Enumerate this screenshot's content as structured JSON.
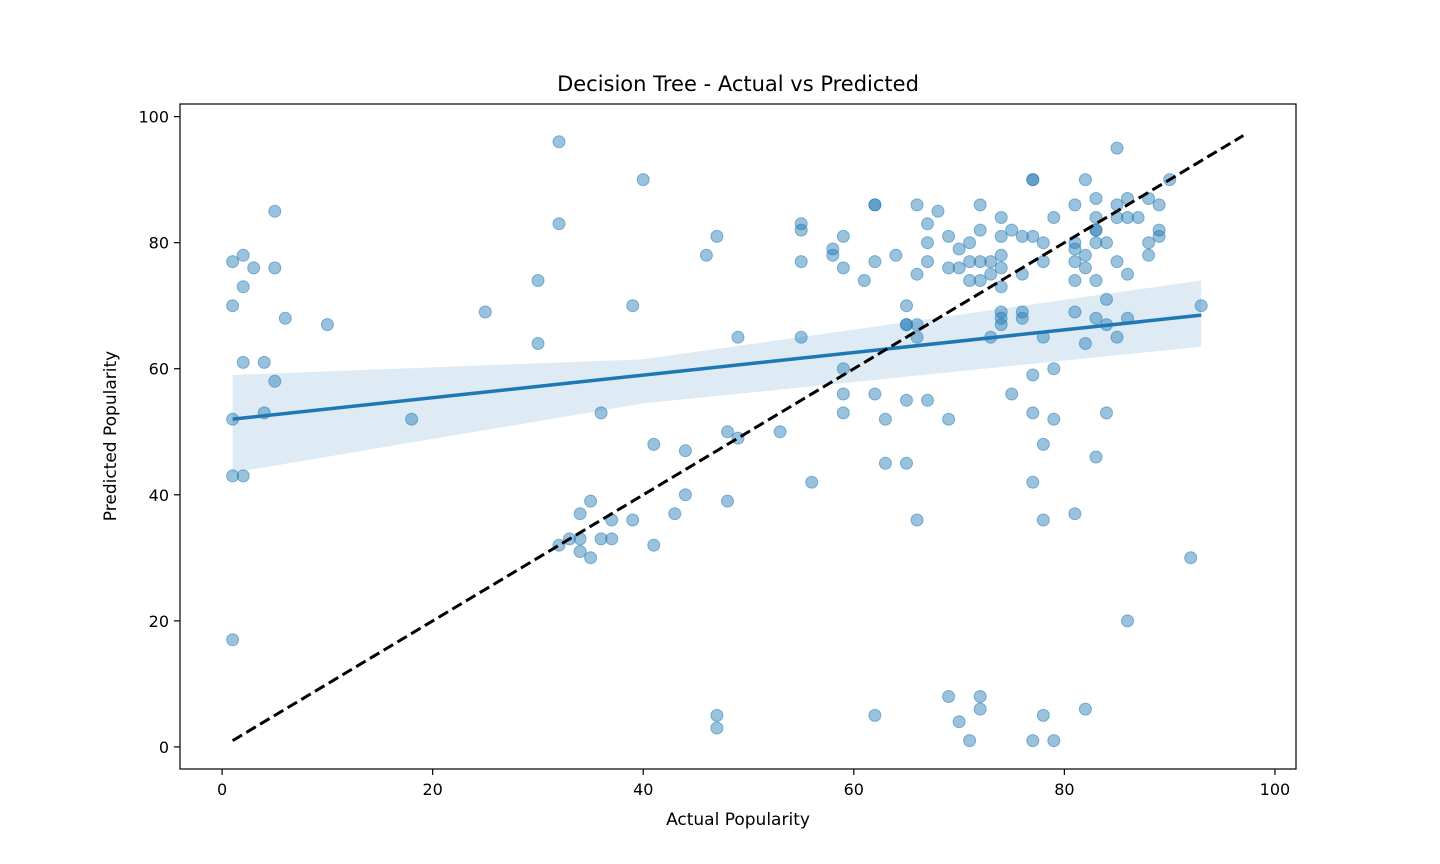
{
  "chart_data": {
    "type": "scatter",
    "title": "Decision Tree - Actual vs Predicted",
    "xlabel": "Actual Popularity",
    "ylabel": "Predicted Popularity",
    "xlim": [
      -4,
      102
    ],
    "ylim": [
      -3.5,
      102
    ],
    "xticks": [
      0,
      20,
      40,
      60,
      80,
      100
    ],
    "yticks": [
      0,
      20,
      40,
      60,
      80,
      100
    ],
    "grid": false,
    "colors": {
      "points": "#1f77b4",
      "regression": "#1f77b4",
      "confidence_band": "#1f77b4",
      "identity_line": "#000000"
    },
    "series": [
      {
        "kind": "scatter",
        "points": [
          [
            1,
            77
          ],
          [
            1,
            70
          ],
          [
            1,
            52
          ],
          [
            1,
            43
          ],
          [
            1,
            17
          ],
          [
            2,
            78
          ],
          [
            2,
            73
          ],
          [
            2,
            61
          ],
          [
            2,
            43
          ],
          [
            3,
            76
          ],
          [
            4,
            61
          ],
          [
            4,
            53
          ],
          [
            5,
            85
          ],
          [
            5,
            76
          ],
          [
            5,
            58
          ],
          [
            6,
            68
          ],
          [
            10,
            67
          ],
          [
            18,
            52
          ],
          [
            25,
            69
          ],
          [
            30,
            74
          ],
          [
            30,
            64
          ],
          [
            32,
            96
          ],
          [
            32,
            83
          ],
          [
            32,
            32
          ],
          [
            33,
            33
          ],
          [
            34,
            37
          ],
          [
            34,
            33
          ],
          [
            34,
            31
          ],
          [
            35,
            39
          ],
          [
            35,
            30
          ],
          [
            36,
            53
          ],
          [
            36,
            33
          ],
          [
            37,
            36
          ],
          [
            37,
            33
          ],
          [
            39,
            70
          ],
          [
            39,
            36
          ],
          [
            40,
            90
          ],
          [
            41,
            48
          ],
          [
            41,
            32
          ],
          [
            43,
            37
          ],
          [
            44,
            47
          ],
          [
            44,
            40
          ],
          [
            46,
            78
          ],
          [
            47,
            81
          ],
          [
            47,
            5
          ],
          [
            47,
            3
          ],
          [
            48,
            50
          ],
          [
            48,
            39
          ],
          [
            49,
            65
          ],
          [
            49,
            49
          ],
          [
            53,
            50
          ],
          [
            55,
            83
          ],
          [
            55,
            82
          ],
          [
            55,
            77
          ],
          [
            55,
            65
          ],
          [
            56,
            42
          ],
          [
            58,
            79
          ],
          [
            58,
            78
          ],
          [
            59,
            81
          ],
          [
            59,
            76
          ],
          [
            59,
            60
          ],
          [
            59,
            56
          ],
          [
            59,
            53
          ],
          [
            61,
            74
          ],
          [
            62,
            86
          ],
          [
            62,
            86
          ],
          [
            62,
            77
          ],
          [
            62,
            56
          ],
          [
            62,
            5
          ],
          [
            63,
            52
          ],
          [
            63,
            45
          ],
          [
            64,
            78
          ],
          [
            65,
            70
          ],
          [
            65,
            67
          ],
          [
            65,
            67
          ],
          [
            65,
            55
          ],
          [
            65,
            45
          ],
          [
            66,
            86
          ],
          [
            66,
            75
          ],
          [
            66,
            67
          ],
          [
            66,
            65
          ],
          [
            66,
            36
          ],
          [
            67,
            83
          ],
          [
            67,
            80
          ],
          [
            67,
            77
          ],
          [
            67,
            55
          ],
          [
            68,
            85
          ],
          [
            69,
            81
          ],
          [
            69,
            76
          ],
          [
            69,
            52
          ],
          [
            69,
            8
          ],
          [
            70,
            79
          ],
          [
            70,
            76
          ],
          [
            70,
            4
          ],
          [
            71,
            80
          ],
          [
            71,
            77
          ],
          [
            71,
            74
          ],
          [
            71,
            1
          ],
          [
            72,
            86
          ],
          [
            72,
            82
          ],
          [
            72,
            77
          ],
          [
            72,
            74
          ],
          [
            72,
            8
          ],
          [
            72,
            6
          ],
          [
            73,
            77
          ],
          [
            73,
            75
          ],
          [
            73,
            65
          ],
          [
            74,
            84
          ],
          [
            74,
            81
          ],
          [
            74,
            78
          ],
          [
            74,
            76
          ],
          [
            74,
            73
          ],
          [
            74,
            69
          ],
          [
            74,
            68
          ],
          [
            74,
            67
          ],
          [
            75,
            82
          ],
          [
            75,
            56
          ],
          [
            76,
            81
          ],
          [
            76,
            75
          ],
          [
            76,
            69
          ],
          [
            76,
            68
          ],
          [
            77,
            90
          ],
          [
            77,
            90
          ],
          [
            77,
            81
          ],
          [
            77,
            59
          ],
          [
            77,
            53
          ],
          [
            77,
            42
          ],
          [
            77,
            1
          ],
          [
            78,
            80
          ],
          [
            78,
            77
          ],
          [
            78,
            65
          ],
          [
            78,
            48
          ],
          [
            78,
            36
          ],
          [
            78,
            5
          ],
          [
            79,
            84
          ],
          [
            79,
            60
          ],
          [
            79,
            52
          ],
          [
            79,
            1
          ],
          [
            81,
            86
          ],
          [
            81,
            80
          ],
          [
            81,
            79
          ],
          [
            81,
            77
          ],
          [
            81,
            74
          ],
          [
            81,
            69
          ],
          [
            81,
            37
          ],
          [
            82,
            90
          ],
          [
            82,
            78
          ],
          [
            82,
            76
          ],
          [
            82,
            64
          ],
          [
            82,
            6
          ],
          [
            83,
            87
          ],
          [
            83,
            84
          ],
          [
            83,
            82
          ],
          [
            83,
            82
          ],
          [
            83,
            80
          ],
          [
            83,
            74
          ],
          [
            83,
            68
          ],
          [
            83,
            46
          ],
          [
            84,
            80
          ],
          [
            84,
            71
          ],
          [
            84,
            67
          ],
          [
            84,
            53
          ],
          [
            85,
            95
          ],
          [
            85,
            86
          ],
          [
            85,
            84
          ],
          [
            85,
            77
          ],
          [
            85,
            65
          ],
          [
            86,
            87
          ],
          [
            86,
            84
          ],
          [
            86,
            75
          ],
          [
            86,
            68
          ],
          [
            86,
            20
          ],
          [
            87,
            84
          ],
          [
            88,
            87
          ],
          [
            88,
            80
          ],
          [
            88,
            78
          ],
          [
            89,
            86
          ],
          [
            89,
            82
          ],
          [
            89,
            81
          ],
          [
            90,
            90
          ],
          [
            92,
            30
          ],
          [
            93,
            70
          ]
        ]
      },
      {
        "kind": "regression",
        "x": [
          1,
          93
        ],
        "y": [
          52,
          68.5
        ],
        "band": [
          [
            1,
            43.5,
            59
          ],
          [
            40,
            54.5,
            61.5
          ],
          [
            93,
            63.5,
            74
          ]
        ]
      },
      {
        "kind": "identity",
        "x": [
          1,
          97
        ],
        "y": [
          1,
          97
        ]
      }
    ]
  }
}
